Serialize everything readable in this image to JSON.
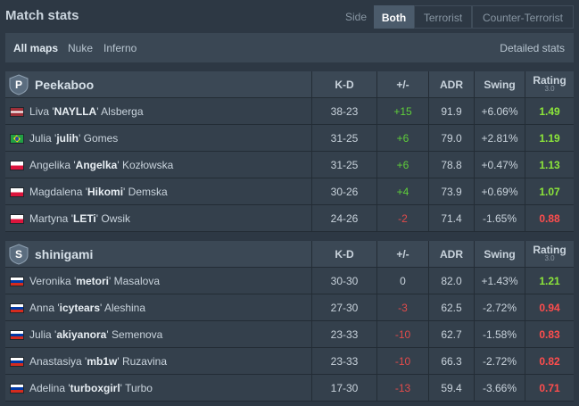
{
  "header": {
    "title": "Match stats",
    "side_label": "Side",
    "side_options": [
      "Both",
      "Terrorist",
      "Counter-Terrorist"
    ],
    "selected_side": "Both"
  },
  "maps": {
    "items": [
      "All maps",
      "Nuke",
      "Inferno"
    ],
    "selected": "All maps",
    "detailed_link": "Detailed stats"
  },
  "columns": {
    "kd": "K-D",
    "pm": "+/-",
    "adr": "ADR",
    "swing": "Swing",
    "rating": "Rating",
    "rating_sub": "3.0"
  },
  "teams": [
    {
      "name": "Peekaboo",
      "logo_letter": "P",
      "players": [
        {
          "first": "Liva",
          "nick": "NAYLLA",
          "last": "Alsberga",
          "flag": "lv",
          "kd": "38-23",
          "pm": "+15",
          "adr": "91.9",
          "swing": "+6.06%",
          "rating": "1.49"
        },
        {
          "first": "Julia",
          "nick": "julih",
          "last": "Gomes",
          "flag": "br",
          "kd": "31-25",
          "pm": "+6",
          "adr": "79.0",
          "swing": "+2.81%",
          "rating": "1.19"
        },
        {
          "first": "Angelika",
          "nick": "Angelka",
          "last": "Kozłowska",
          "flag": "pl",
          "kd": "31-25",
          "pm": "+6",
          "adr": "78.8",
          "swing": "+0.47%",
          "rating": "1.13"
        },
        {
          "first": "Magdalena",
          "nick": "Hikomi",
          "last": "Demska",
          "flag": "pl",
          "kd": "30-26",
          "pm": "+4",
          "adr": "73.9",
          "swing": "+0.69%",
          "rating": "1.07"
        },
        {
          "first": "Martyna",
          "nick": "LETi",
          "last": "Owsik",
          "flag": "pl",
          "kd": "24-26",
          "pm": "-2",
          "adr": "71.4",
          "swing": "-1.65%",
          "rating": "0.88"
        }
      ]
    },
    {
      "name": "shinigami",
      "logo_letter": "S",
      "players": [
        {
          "first": "Veronika",
          "nick": "metori",
          "last": "Masalova",
          "flag": "ru",
          "kd": "30-30",
          "pm": "0",
          "adr": "82.0",
          "swing": "+1.43%",
          "rating": "1.21"
        },
        {
          "first": "Anna",
          "nick": "icytears",
          "last": "Aleshina",
          "flag": "ru",
          "kd": "27-30",
          "pm": "-3",
          "adr": "62.5",
          "swing": "-2.72%",
          "rating": "0.94"
        },
        {
          "first": "Julia",
          "nick": "akiyanora",
          "last": "Semenova",
          "flag": "ru",
          "kd": "23-33",
          "pm": "-10",
          "adr": "62.7",
          "swing": "-1.58%",
          "rating": "0.83"
        },
        {
          "first": "Anastasiya",
          "nick": "mb1w",
          "last": "Ruzavina",
          "flag": "ru",
          "kd": "23-33",
          "pm": "-10",
          "adr": "66.3",
          "swing": "-2.72%",
          "rating": "0.82"
        },
        {
          "first": "Adelina",
          "nick": "turboxgirl",
          "last": "Turbo",
          "flag": "ru",
          "kd": "17-30",
          "pm": "-13",
          "adr": "59.4",
          "swing": "-3.66%",
          "rating": "0.71"
        }
      ]
    }
  ],
  "colors": {
    "positive": "#5fcf3a",
    "negative": "#e14b4b",
    "rating_good": "#8ce63a",
    "rating_bad": "#ff4d4d"
  }
}
